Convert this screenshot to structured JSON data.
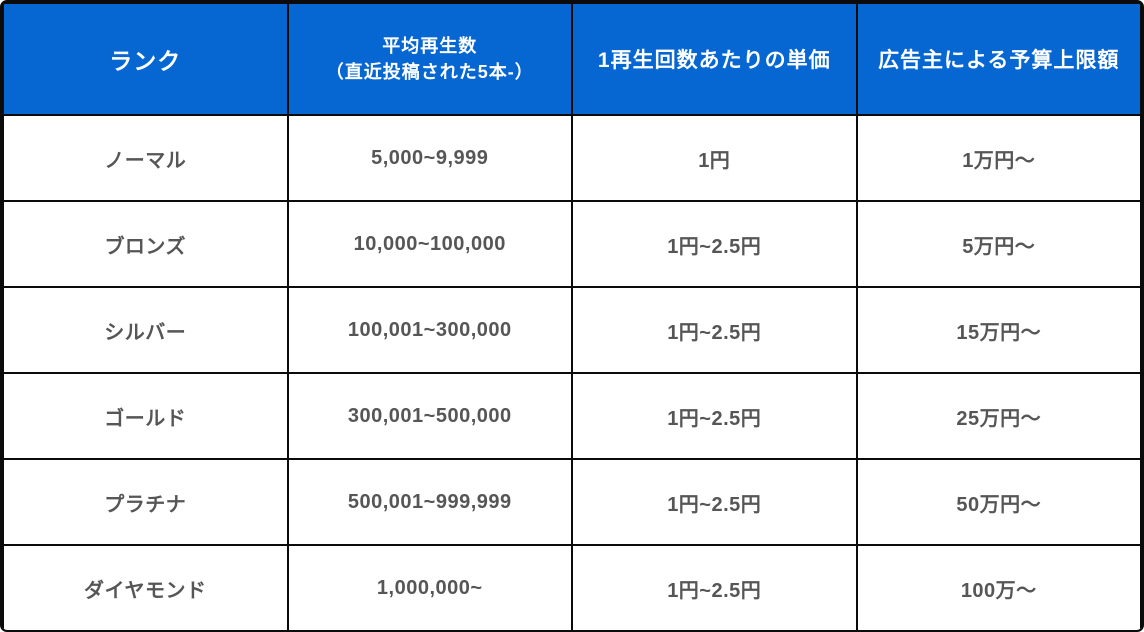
{
  "colors": {
    "header_bg": "#0667d2",
    "header_text": "#ffffff",
    "body_text": "#565656",
    "grid_border": "#0b0b0b",
    "body_bg": "#ffffff"
  },
  "table": {
    "headers": [
      {
        "label": "ランク"
      },
      {
        "label": "平均再生数",
        "sub": "（直近投稿された5本-）"
      },
      {
        "label": "1再生回数あたりの単価"
      },
      {
        "label": "広告主による予算上限額"
      }
    ],
    "rows": [
      {
        "rank": "ノーマル",
        "avg_views": "5,000~9,999",
        "unit_price": "1円",
        "budget_cap": "1万円〜"
      },
      {
        "rank": "ブロンズ",
        "avg_views": "10,000~100,000",
        "unit_price": "1円~2.5円",
        "budget_cap": "5万円〜"
      },
      {
        "rank": "シルバー",
        "avg_views": "100,001~300,000",
        "unit_price": "1円~2.5円",
        "budget_cap": "15万円〜"
      },
      {
        "rank": "ゴールド",
        "avg_views": "300,001~500,000",
        "unit_price": "1円~2.5円",
        "budget_cap": "25万円〜"
      },
      {
        "rank": "プラチナ",
        "avg_views": "500,001~999,999",
        "unit_price": "1円~2.5円",
        "budget_cap": "50万円〜"
      },
      {
        "rank": "ダイヤモンド",
        "avg_views": "1,000,000~",
        "unit_price": "1円~2.5円",
        "budget_cap": "100万〜"
      }
    ]
  },
  "chart_data": {
    "type": "table",
    "title": "",
    "columns": [
      "ランク",
      "平均再生数（直近投稿された5本-）",
      "1再生回数あたりの単価",
      "広告主による予算上限額"
    ],
    "rows": [
      [
        "ノーマル",
        "5,000~9,999",
        "1円",
        "1万円〜"
      ],
      [
        "ブロンズ",
        "10,000~100,000",
        "1円~2.5円",
        "5万円〜"
      ],
      [
        "シルバー",
        "100,001~300,000",
        "1円~2.5円",
        "15万円〜"
      ],
      [
        "ゴールド",
        "300,001~500,000",
        "1円~2.5円",
        "25万円〜"
      ],
      [
        "プラチナ",
        "500,001~999,999",
        "1円~2.5円",
        "50万円〜"
      ],
      [
        "ダイヤモンド",
        "1,000,000~",
        "1円~2.5円",
        "100万〜"
      ]
    ]
  }
}
